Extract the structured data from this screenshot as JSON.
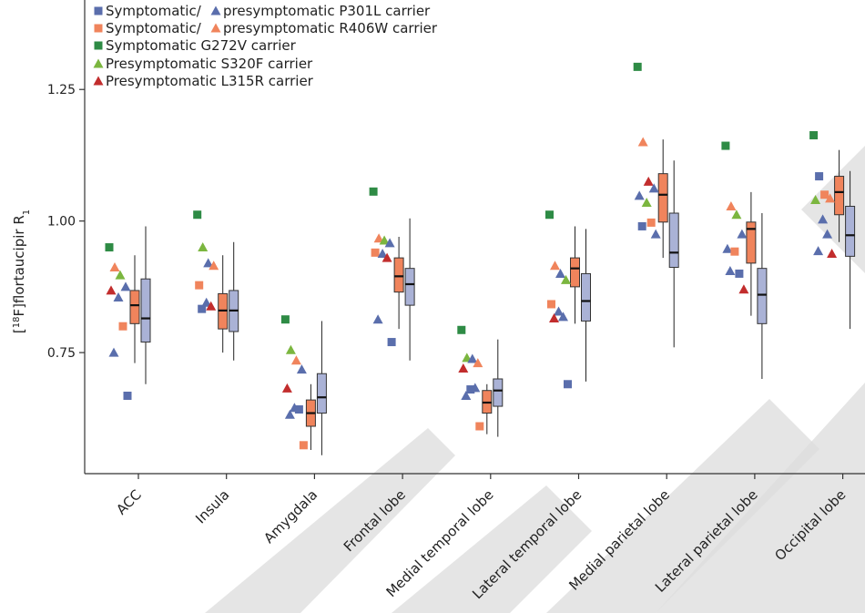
{
  "chart_data": {
    "type": "box",
    "ylabel": "[18F]flortaucipir R1",
    "ylabel_parts": {
      "pre": "[",
      "sup": "18",
      "mid": "F]flortaucipir R",
      "sub": "1"
    },
    "ylim": [
      0.52,
      1.42
    ],
    "yticks": [
      0.75,
      1.0,
      1.25
    ],
    "ytick_labels": [
      "0.75",
      "1.00",
      "1.25"
    ],
    "grid": false,
    "legend_position": "top-left",
    "categories": [
      "ACC",
      "Insula",
      "Amygdala",
      "Frontal lobe",
      "Medial temporal lobe",
      "Lateral temporal lobe",
      "Medial parietal lobe",
      "Lateral parietal lobe",
      "Occipital lobe"
    ],
    "legend": [
      {
        "key": "sq_p301l",
        "marker": "square",
        "color": "#5a6eac",
        "label": "Symptomatic/"
      },
      {
        "key": "tri_p301l",
        "marker": "triangle",
        "color": "#5a6eac",
        "label": "presymptomatic P301L carrier"
      },
      {
        "key": "sq_r406w",
        "marker": "square",
        "color": "#f0845c",
        "label": "Symptomatic/"
      },
      {
        "key": "tri_r406w",
        "marker": "triangle",
        "color": "#f0845c",
        "label": "presymptomatic R406W carrier"
      },
      {
        "key": "g272v",
        "marker": "square",
        "color": "#2e8b45",
        "label": "Symptomatic G272V carrier"
      },
      {
        "key": "s320f",
        "marker": "triangle",
        "color": "#7bb63f",
        "label": "Presymptomatic S320F carrier"
      },
      {
        "key": "l315r",
        "marker": "triangle",
        "color": "#c22d2d",
        "label": "Presymptomatic L315R carrier"
      }
    ],
    "boxes": [
      {
        "category": "ACC",
        "group": "carriers",
        "color": "#f0845c",
        "whisker_low": 0.73,
        "q1": 0.805,
        "median": 0.84,
        "q3": 0.868,
        "whisker_high": 0.935
      },
      {
        "category": "ACC",
        "group": "controls",
        "color": "#aab2d6",
        "whisker_low": 0.69,
        "q1": 0.77,
        "median": 0.815,
        "q3": 0.89,
        "whisker_high": 0.99
      },
      {
        "category": "Insula",
        "group": "carriers",
        "color": "#f0845c",
        "whisker_low": 0.75,
        "q1": 0.795,
        "median": 0.83,
        "q3": 0.862,
        "whisker_high": 0.935
      },
      {
        "category": "Insula",
        "group": "controls",
        "color": "#aab2d6",
        "whisker_low": 0.735,
        "q1": 0.79,
        "median": 0.83,
        "q3": 0.868,
        "whisker_high": 0.96
      },
      {
        "category": "Amygdala",
        "group": "carriers",
        "color": "#f0845c",
        "whisker_low": 0.565,
        "q1": 0.61,
        "median": 0.635,
        "q3": 0.66,
        "whisker_high": 0.69
      },
      {
        "category": "Amygdala",
        "group": "controls",
        "color": "#aab2d6",
        "whisker_low": 0.555,
        "q1": 0.635,
        "median": 0.665,
        "q3": 0.71,
        "whisker_high": 0.81
      },
      {
        "category": "Frontal lobe",
        "group": "carriers",
        "color": "#f0845c",
        "whisker_low": 0.795,
        "q1": 0.865,
        "median": 0.895,
        "q3": 0.93,
        "whisker_high": 0.97
      },
      {
        "category": "Frontal lobe",
        "group": "controls",
        "color": "#aab2d6",
        "whisker_low": 0.735,
        "q1": 0.84,
        "median": 0.88,
        "q3": 0.91,
        "whisker_high": 1.005
      },
      {
        "category": "Medial temporal lobe",
        "group": "carriers",
        "color": "#f0845c",
        "whisker_low": 0.595,
        "q1": 0.635,
        "median": 0.655,
        "q3": 0.678,
        "whisker_high": 0.69
      },
      {
        "category": "Medial temporal lobe",
        "group": "controls",
        "color": "#aab2d6",
        "whisker_low": 0.59,
        "q1": 0.648,
        "median": 0.678,
        "q3": 0.7,
        "whisker_high": 0.775
      },
      {
        "category": "Lateral temporal lobe",
        "group": "carriers",
        "color": "#f0845c",
        "whisker_low": 0.805,
        "q1": 0.875,
        "median": 0.91,
        "q3": 0.93,
        "whisker_high": 0.99
      },
      {
        "category": "Lateral temporal lobe",
        "group": "controls",
        "color": "#aab2d6",
        "whisker_low": 0.695,
        "q1": 0.81,
        "median": 0.848,
        "q3": 0.9,
        "whisker_high": 0.985
      },
      {
        "category": "Medial parietal lobe",
        "group": "carriers",
        "color": "#f0845c",
        "whisker_low": 0.93,
        "q1": 0.998,
        "median": 1.05,
        "q3": 1.09,
        "whisker_high": 1.155
      },
      {
        "category": "Medial parietal lobe",
        "group": "controls",
        "color": "#aab2d6",
        "whisker_low": 0.76,
        "q1": 0.912,
        "median": 0.94,
        "q3": 1.015,
        "whisker_high": 1.115
      },
      {
        "category": "Lateral parietal lobe",
        "group": "carriers",
        "color": "#f0845c",
        "whisker_low": 0.82,
        "q1": 0.92,
        "median": 0.985,
        "q3": 0.998,
        "whisker_high": 1.055
      },
      {
        "category": "Lateral parietal lobe",
        "group": "controls",
        "color": "#aab2d6",
        "whisker_low": 0.7,
        "q1": 0.805,
        "median": 0.86,
        "q3": 0.91,
        "whisker_high": 1.015
      },
      {
        "category": "Occipital lobe",
        "group": "carriers",
        "color": "#f0845c",
        "whisker_low": 0.96,
        "q1": 1.012,
        "median": 1.055,
        "q3": 1.085,
        "whisker_high": 1.135
      },
      {
        "category": "Occipital lobe",
        "group": "controls",
        "color": "#aab2d6",
        "whisker_low": 0.795,
        "q1": 0.933,
        "median": 0.973,
        "q3": 1.028,
        "whisker_high": 1.095
      }
    ],
    "points": {
      "ACC": [
        {
          "key": "g272v",
          "y": 0.95
        },
        {
          "key": "tri_r406w",
          "y": 0.912
        },
        {
          "key": "s320f",
          "y": 0.897
        },
        {
          "key": "tri_p301l",
          "y": 0.875
        },
        {
          "key": "l315r",
          "y": 0.868
        },
        {
          "key": "tri_p301l",
          "y": 0.855
        },
        {
          "key": "sq_r406w",
          "y": 0.8
        },
        {
          "key": "tri_p301l",
          "y": 0.75
        },
        {
          "key": "sq_p301l",
          "y": 0.668
        }
      ],
      "Insula": [
        {
          "key": "g272v",
          "y": 1.012
        },
        {
          "key": "s320f",
          "y": 0.95
        },
        {
          "key": "tri_p301l",
          "y": 0.92
        },
        {
          "key": "tri_r406w",
          "y": 0.915
        },
        {
          "key": "sq_r406w",
          "y": 0.878
        },
        {
          "key": "tri_p301l",
          "y": 0.845
        },
        {
          "key": "l315r",
          "y": 0.838
        },
        {
          "key": "sq_p301l",
          "y": 0.833
        }
      ],
      "Amygdala": [
        {
          "key": "g272v",
          "y": 0.813
        },
        {
          "key": "s320f",
          "y": 0.755
        },
        {
          "key": "tri_r406w",
          "y": 0.735
        },
        {
          "key": "tri_p301l",
          "y": 0.718
        },
        {
          "key": "l315r",
          "y": 0.682
        },
        {
          "key": "tri_p301l",
          "y": 0.645
        },
        {
          "key": "sq_p301l",
          "y": 0.642
        },
        {
          "key": "tri_p301l",
          "y": 0.632
        },
        {
          "key": "sq_r406w",
          "y": 0.574
        }
      ],
      "Frontal lobe": [
        {
          "key": "g272v",
          "y": 1.056
        },
        {
          "key": "tri_r406w",
          "y": 0.967
        },
        {
          "key": "s320f",
          "y": 0.963
        },
        {
          "key": "tri_p301l",
          "y": 0.958
        },
        {
          "key": "sq_r406w",
          "y": 0.94
        },
        {
          "key": "tri_p301l",
          "y": 0.938
        },
        {
          "key": "l315r",
          "y": 0.93
        },
        {
          "key": "tri_p301l",
          "y": 0.813
        },
        {
          "key": "sq_p301l",
          "y": 0.77
        }
      ],
      "Medial temporal lobe": [
        {
          "key": "g272v",
          "y": 0.793
        },
        {
          "key": "s320f",
          "y": 0.74
        },
        {
          "key": "tri_p301l",
          "y": 0.738
        },
        {
          "key": "tri_r406w",
          "y": 0.73
        },
        {
          "key": "l315r",
          "y": 0.72
        },
        {
          "key": "sq_p301l",
          "y": 0.68
        },
        {
          "key": "tri_p301l",
          "y": 0.683
        },
        {
          "key": "tri_p301l",
          "y": 0.668
        },
        {
          "key": "sq_r406w",
          "y": 0.61
        }
      ],
      "Lateral temporal lobe": [
        {
          "key": "g272v",
          "y": 1.012
        },
        {
          "key": "tri_r406w",
          "y": 0.915
        },
        {
          "key": "tri_p301l",
          "y": 0.9
        },
        {
          "key": "s320f",
          "y": 0.888
        },
        {
          "key": "sq_r406w",
          "y": 0.842
        },
        {
          "key": "tri_p301l",
          "y": 0.828
        },
        {
          "key": "tri_p301l",
          "y": 0.818
        },
        {
          "key": "l315r",
          "y": 0.815
        },
        {
          "key": "sq_p301l",
          "y": 0.69
        }
      ],
      "Medial parietal lobe": [
        {
          "key": "g272v",
          "y": 1.293
        },
        {
          "key": "tri_r406w",
          "y": 1.15
        },
        {
          "key": "l315r",
          "y": 1.075
        },
        {
          "key": "tri_p301l",
          "y": 1.062
        },
        {
          "key": "tri_p301l",
          "y": 1.048
        },
        {
          "key": "s320f",
          "y": 1.035
        },
        {
          "key": "sq_r406w",
          "y": 0.997
        },
        {
          "key": "sq_p301l",
          "y": 0.99
        },
        {
          "key": "tri_p301l",
          "y": 0.975
        }
      ],
      "Lateral parietal lobe": [
        {
          "key": "g272v",
          "y": 1.143
        },
        {
          "key": "tri_r406w",
          "y": 1.028
        },
        {
          "key": "s320f",
          "y": 1.012
        },
        {
          "key": "tri_p301l",
          "y": 0.975
        },
        {
          "key": "tri_p301l",
          "y": 0.947
        },
        {
          "key": "sq_r406w",
          "y": 0.942
        },
        {
          "key": "sq_p301l",
          "y": 0.9
        },
        {
          "key": "tri_p301l",
          "y": 0.905
        },
        {
          "key": "l315r",
          "y": 0.87
        }
      ],
      "Occipital lobe": [
        {
          "key": "g272v",
          "y": 1.163
        },
        {
          "key": "sq_p301l",
          "y": 1.085
        },
        {
          "key": "sq_r406w",
          "y": 1.05
        },
        {
          "key": "tri_r406w",
          "y": 1.043
        },
        {
          "key": "s320f",
          "y": 1.04
        },
        {
          "key": "tri_p301l",
          "y": 1.003
        },
        {
          "key": "tri_p301l",
          "y": 0.975
        },
        {
          "key": "tri_p301l",
          "y": 0.943
        },
        {
          "key": "l315r",
          "y": 0.938
        }
      ]
    }
  }
}
